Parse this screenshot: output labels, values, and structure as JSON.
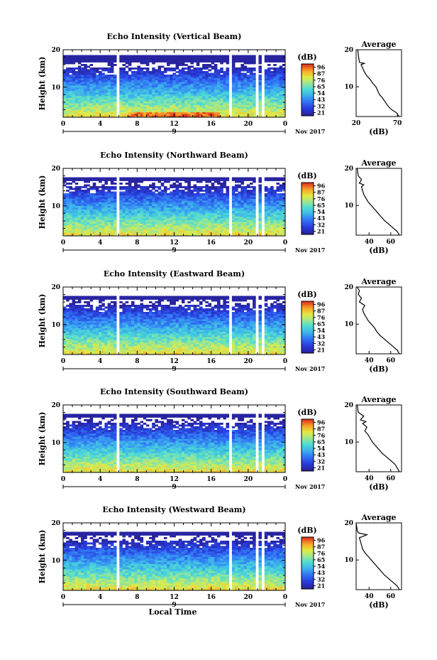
{
  "chart_data": [
    {
      "type": "heatmap",
      "title": "Echo Intensity (Vertical Beam)",
      "ylabel": "Height (km)",
      "xlabel": "",
      "x_ticks": [
        "0",
        "4",
        "8",
        "12",
        "16",
        "20",
        "0"
      ],
      "y_ticks": [
        "10",
        "20"
      ],
      "ylim": [
        2,
        20
      ],
      "date_label": "9",
      "date_suffix": "Nov 2017",
      "colorbar": {
        "unit": "(dB)",
        "ticks": [
          "96",
          "87",
          "76",
          "65",
          "54",
          "43",
          "32",
          "21"
        ],
        "range": [
          21,
          96
        ]
      },
      "data_gaps_hours": [
        [
          5.8,
          6.0
        ],
        [
          17.9,
          18.3
        ],
        [
          20.8,
          21.1
        ],
        [
          21.6,
          21.9
        ]
      ],
      "profile": {
        "title": "Average",
        "xlabel": "(dB)",
        "x_ticks": [
          "20",
          "70"
        ],
        "xlim": [
          20,
          75
        ],
        "y_ticks": [
          "10",
          "20"
        ],
        "points": [
          [
            72,
            2
          ],
          [
            69,
            3
          ],
          [
            62,
            4
          ],
          [
            58,
            5
          ],
          [
            55,
            6
          ],
          [
            52,
            7
          ],
          [
            48,
            8
          ],
          [
            46,
            9
          ],
          [
            44,
            10
          ],
          [
            40,
            11
          ],
          [
            37,
            12
          ],
          [
            33,
            13
          ],
          [
            30,
            14
          ],
          [
            28,
            15
          ],
          [
            26,
            16
          ],
          [
            30,
            16.3
          ],
          [
            24,
            16.6
          ],
          [
            23,
            18
          ],
          [
            22,
            20
          ]
        ]
      }
    },
    {
      "type": "heatmap",
      "title": "Echo Intensity (Northward Beam)",
      "ylabel": "Height (km)",
      "xlabel": "",
      "x_ticks": [
        "0",
        "4",
        "8",
        "12",
        "16",
        "20",
        "0"
      ],
      "y_ticks": [
        "10",
        "20"
      ],
      "ylim": [
        2,
        20
      ],
      "date_label": "9",
      "date_suffix": "Nov 2017",
      "colorbar": {
        "unit": "(dB)",
        "ticks": [
          "96",
          "87",
          "76",
          "65",
          "54",
          "43",
          "32",
          "21"
        ],
        "range": [
          21,
          96
        ]
      },
      "data_gaps_hours": [
        [
          5.8,
          6.0
        ],
        [
          17.9,
          18.3
        ],
        [
          20.8,
          21.1
        ],
        [
          21.6,
          21.9
        ]
      ],
      "profile": {
        "title": "Average",
        "xlabel": "(dB)",
        "x_ticks": [
          "40",
          "60"
        ],
        "xlim": [
          28,
          70
        ],
        "y_ticks": [
          "10",
          "20"
        ],
        "points": [
          [
            68,
            2
          ],
          [
            66,
            3
          ],
          [
            62,
            4
          ],
          [
            58,
            5
          ],
          [
            54,
            6
          ],
          [
            51,
            7
          ],
          [
            48,
            8
          ],
          [
            45,
            9
          ],
          [
            42,
            10
          ],
          [
            39,
            11
          ],
          [
            37,
            12
          ],
          [
            35,
            13
          ],
          [
            34,
            14
          ],
          [
            33,
            15
          ],
          [
            35,
            15.6
          ],
          [
            31,
            16
          ],
          [
            33,
            17
          ],
          [
            30,
            18
          ],
          [
            29,
            20
          ]
        ]
      }
    },
    {
      "type": "heatmap",
      "title": "Echo Intensity (Eastward Beam)",
      "ylabel": "Height (km)",
      "xlabel": "",
      "x_ticks": [
        "0",
        "4",
        "8",
        "12",
        "16",
        "20",
        "0"
      ],
      "y_ticks": [
        "10",
        "20"
      ],
      "ylim": [
        2,
        20
      ],
      "date_label": "9",
      "date_suffix": "Nov 2017",
      "colorbar": {
        "unit": "(dB)",
        "ticks": [
          "96",
          "87",
          "76",
          "65",
          "54",
          "43",
          "32",
          "21"
        ],
        "range": [
          21,
          96
        ]
      },
      "data_gaps_hours": [
        [
          5.8,
          6.0
        ],
        [
          17.9,
          18.3
        ],
        [
          20.8,
          21.1
        ],
        [
          21.6,
          21.9
        ]
      ],
      "profile": {
        "title": "Average",
        "xlabel": "(dB)",
        "x_ticks": [
          "40",
          "60"
        ],
        "xlim": [
          28,
          70
        ],
        "y_ticks": [
          "10",
          "20"
        ],
        "points": [
          [
            68,
            2
          ],
          [
            66,
            3
          ],
          [
            62,
            4
          ],
          [
            58,
            5
          ],
          [
            54,
            6
          ],
          [
            50,
            7
          ],
          [
            47,
            8
          ],
          [
            45,
            9
          ],
          [
            42,
            10
          ],
          [
            39,
            11
          ],
          [
            37,
            12
          ],
          [
            35,
            13
          ],
          [
            34,
            14
          ],
          [
            36,
            15
          ],
          [
            31,
            16
          ],
          [
            33,
            17
          ],
          [
            30,
            18
          ],
          [
            31,
            19
          ],
          [
            29,
            20
          ]
        ]
      }
    },
    {
      "type": "heatmap",
      "title": "Echo Intensity (Southward Beam)",
      "ylabel": "Height (km)",
      "xlabel": "",
      "x_ticks": [
        "0",
        "4",
        "8",
        "12",
        "16",
        "20",
        "0"
      ],
      "y_ticks": [
        "10",
        "20"
      ],
      "ylim": [
        2,
        20
      ],
      "date_label": "9",
      "date_suffix": "Nov 2017",
      "colorbar": {
        "unit": "(dB)",
        "ticks": [
          "96",
          "87",
          "76",
          "65",
          "54",
          "43",
          "32",
          "21"
        ],
        "range": [
          21,
          96
        ]
      },
      "data_gaps_hours": [
        [
          5.8,
          6.0
        ],
        [
          17.9,
          18.3
        ],
        [
          20.8,
          21.1
        ],
        [
          21.6,
          21.9
        ]
      ],
      "profile": {
        "title": "Average",
        "xlabel": "(dB)",
        "x_ticks": [
          "40",
          "60"
        ],
        "xlim": [
          28,
          70
        ],
        "y_ticks": [
          "10",
          "20"
        ],
        "points": [
          [
            68,
            2
          ],
          [
            66,
            3
          ],
          [
            64,
            4
          ],
          [
            60,
            5
          ],
          [
            56,
            6
          ],
          [
            52,
            7
          ],
          [
            49,
            8
          ],
          [
            46,
            9
          ],
          [
            43,
            10
          ],
          [
            41,
            11
          ],
          [
            39,
            12
          ],
          [
            36,
            13
          ],
          [
            38,
            14
          ],
          [
            34,
            15
          ],
          [
            37,
            15.5
          ],
          [
            32,
            16
          ],
          [
            35,
            17
          ],
          [
            30,
            18
          ],
          [
            29,
            20
          ]
        ]
      }
    },
    {
      "type": "heatmap",
      "title": "Echo Intensity (Westward Beam)",
      "ylabel": "Height (km)",
      "xlabel": "Local Time",
      "x_ticks": [
        "0",
        "4",
        "8",
        "12",
        "16",
        "20",
        "0"
      ],
      "y_ticks": [
        "10",
        "20"
      ],
      "ylim": [
        2,
        20
      ],
      "date_label": "9",
      "date_suffix": "Nov 2017",
      "colorbar": {
        "unit": "(dB)",
        "ticks": [
          "96",
          "87",
          "76",
          "65",
          "54",
          "43",
          "32",
          "21"
        ],
        "range": [
          21,
          96
        ]
      },
      "data_gaps_hours": [
        [
          5.8,
          6.0
        ],
        [
          17.9,
          18.3
        ],
        [
          20.8,
          21.1
        ],
        [
          21.6,
          21.9
        ]
      ],
      "profile": {
        "title": "Average",
        "xlabel": "(dB)",
        "x_ticks": [
          "40",
          "60"
        ],
        "xlim": [
          28,
          70
        ],
        "y_ticks": [
          "10",
          "20"
        ],
        "points": [
          [
            68,
            2
          ],
          [
            66,
            3
          ],
          [
            62,
            4
          ],
          [
            58,
            5
          ],
          [
            54,
            6
          ],
          [
            51,
            7
          ],
          [
            48,
            8
          ],
          [
            45,
            9
          ],
          [
            42,
            10
          ],
          [
            39,
            11
          ],
          [
            36,
            12
          ],
          [
            34,
            13
          ],
          [
            33,
            14
          ],
          [
            32,
            15
          ],
          [
            31,
            16
          ],
          [
            38,
            16.8
          ],
          [
            30,
            17.3
          ],
          [
            29,
            18
          ],
          [
            28,
            20
          ]
        ]
      }
    }
  ]
}
